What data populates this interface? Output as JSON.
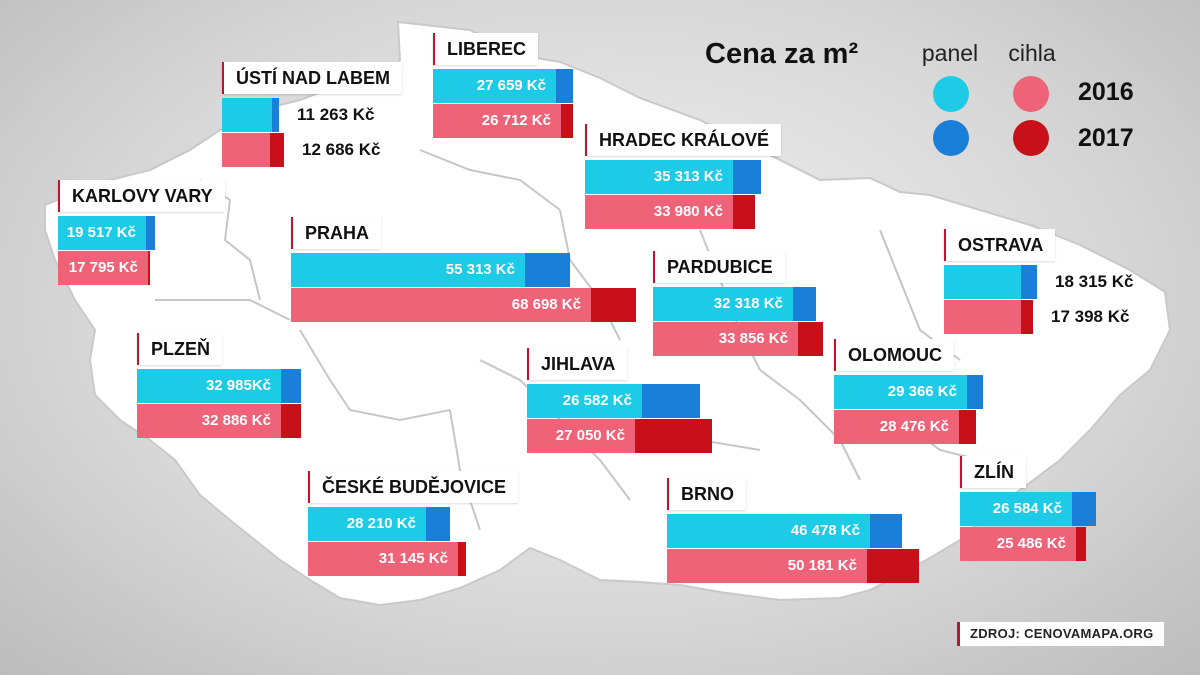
{
  "chart_data": {
    "type": "bar",
    "title": "Cena za m²",
    "unit": "Kč",
    "series": [
      {
        "name": "panel",
        "years": [
          "2016",
          "2017"
        ]
      },
      {
        "name": "cihla",
        "years": [
          "2016",
          "2017"
        ]
      }
    ],
    "legend": {
      "columns": [
        "panel",
        "cihla"
      ],
      "years": [
        "2016",
        "2017"
      ]
    },
    "cities": [
      {
        "name": "ÚSTÍ NAD LABEM",
        "panel_label": "11 263 Kč",
        "panel": 11263,
        "cihla_label": "12 686 Kč",
        "cihla": 12686
      },
      {
        "name": "LIBEREC",
        "panel_label": "27 659 Kč",
        "panel": 27659,
        "cihla_label": "26 712 Kč",
        "cihla": 26712
      },
      {
        "name": "HRADEC KRÁLOVÉ",
        "panel_label": "35 313 Kč",
        "panel": 35313,
        "cihla_label": "33 980 Kč",
        "cihla": 33980
      },
      {
        "name": "KARLOVY VARY",
        "panel_label": "19 517 Kč",
        "panel": 19517,
        "cihla_label": "17 795 Kč",
        "cihla": 17795
      },
      {
        "name": "PRAHA",
        "panel_label": "55 313 Kč",
        "panel": 55313,
        "cihla_label": "68 698 Kč",
        "cihla": 68698
      },
      {
        "name": "PARDUBICE",
        "panel_label": "32 318 Kč",
        "panel": 32318,
        "cihla_label": "33 856 Kč",
        "cihla": 33856
      },
      {
        "name": "OSTRAVA",
        "panel_label": "18 315 Kč",
        "panel": 18315,
        "cihla_label": "17 398 Kč",
        "cihla": 17398
      },
      {
        "name": "PLZEŇ",
        "panel_label": "32 985Kč",
        "panel": 32985,
        "cihla_label": "32 886 Kč",
        "cihla": 32886
      },
      {
        "name": "JIHLAVA",
        "panel_label": "26 582 Kč",
        "panel": 26582,
        "cihla_label": "27 050 Kč",
        "cihla": 27050
      },
      {
        "name": "OLOMOUC",
        "panel_label": "29 366 Kč",
        "panel": 29366,
        "cihla_label": "28 476 Kč",
        "cihla": 28476
      },
      {
        "name": "ČESKÉ BUDĚJOVICE",
        "panel_label": "28 210 Kč",
        "panel": 28210,
        "cihla_label": "31 145 Kč",
        "cihla": 31145
      },
      {
        "name": "BRNO",
        "panel_label": "46 478 Kč",
        "panel": 46478,
        "cihla_label": "50 181 Kč",
        "cihla": 50181
      },
      {
        "name": "ZLÍN",
        "panel_label": "26 584 Kč",
        "panel": 26584,
        "cihla_label": "25 486 Kč",
        "cihla": 25486
      }
    ],
    "colors": {
      "panel_2016": "#1ecbe6",
      "panel_2017": "#1a7fd8",
      "cihla_2016": "#ef6378",
      "cihla_2017": "#c8101a"
    }
  },
  "source": "ZDROJ: CENOVAMAPA.ORG"
}
